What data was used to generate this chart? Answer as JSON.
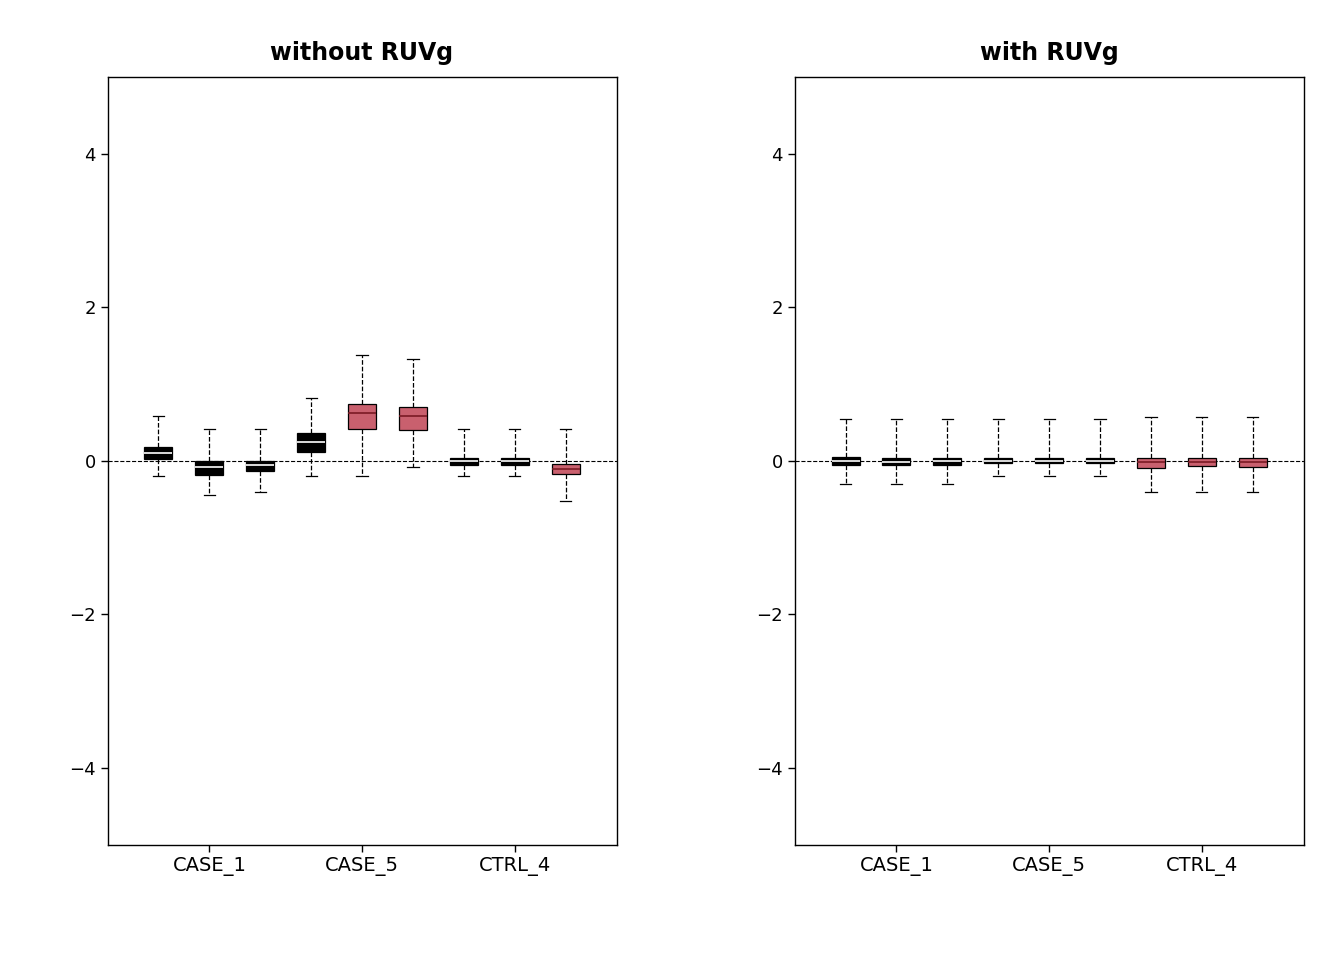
{
  "title_left": "without RUVg",
  "title_right": "with RUVg",
  "ylim": [
    -5.0,
    5.0
  ],
  "yticks": [
    -4,
    -2,
    0,
    2,
    4
  ],
  "group_labels": [
    "CASE_1",
    "CASE_5",
    "CTRL_4"
  ],
  "background_color": "#ffffff",
  "box_color_black": "#000000",
  "box_color_pink": "#c9606e",
  "median_color_pink": "#7a1a24",
  "title_fontsize": 17,
  "tick_fontsize": 13,
  "label_fontsize": 14,
  "left_boxes": {
    "positions": [
      1,
      2,
      3,
      4,
      5,
      6,
      7,
      8,
      9
    ],
    "colors": [
      "black",
      "black",
      "black",
      "black",
      "pink",
      "pink",
      "black",
      "black",
      "pink"
    ],
    "q1": [
      0.02,
      -0.18,
      -0.13,
      0.12,
      0.42,
      0.4,
      -0.05,
      -0.05,
      -0.17
    ],
    "median": [
      0.1,
      -0.08,
      -0.05,
      0.24,
      0.62,
      0.58,
      0.0,
      0.0,
      -0.11
    ],
    "q3": [
      0.18,
      0.0,
      0.0,
      0.36,
      0.74,
      0.7,
      0.03,
      0.03,
      -0.04
    ],
    "whisker_lo": [
      -0.2,
      -0.45,
      -0.4,
      -0.2,
      -0.2,
      -0.08,
      -0.2,
      -0.2,
      -0.52
    ],
    "whisker_hi": [
      0.58,
      0.42,
      0.42,
      0.82,
      1.38,
      1.32,
      0.42,
      0.42,
      0.42
    ]
  },
  "right_boxes": {
    "positions": [
      1,
      2,
      3,
      4,
      5,
      6,
      7,
      8,
      9
    ],
    "colors": [
      "black",
      "black",
      "black",
      "black",
      "black",
      "black",
      "pink",
      "pink",
      "pink"
    ],
    "q1": [
      -0.05,
      -0.06,
      -0.05,
      -0.03,
      -0.03,
      -0.03,
      -0.09,
      -0.07,
      -0.08
    ],
    "median": [
      0.0,
      -0.01,
      0.0,
      0.0,
      0.0,
      0.0,
      -0.02,
      -0.01,
      -0.01
    ],
    "q3": [
      0.05,
      0.04,
      0.04,
      0.03,
      0.03,
      0.03,
      0.04,
      0.04,
      0.03
    ],
    "whisker_lo": [
      -0.3,
      -0.3,
      -0.3,
      -0.2,
      -0.2,
      -0.2,
      -0.4,
      -0.4,
      -0.4
    ],
    "whisker_hi": [
      0.55,
      0.55,
      0.55,
      0.55,
      0.55,
      0.55,
      0.57,
      0.57,
      0.57
    ]
  }
}
